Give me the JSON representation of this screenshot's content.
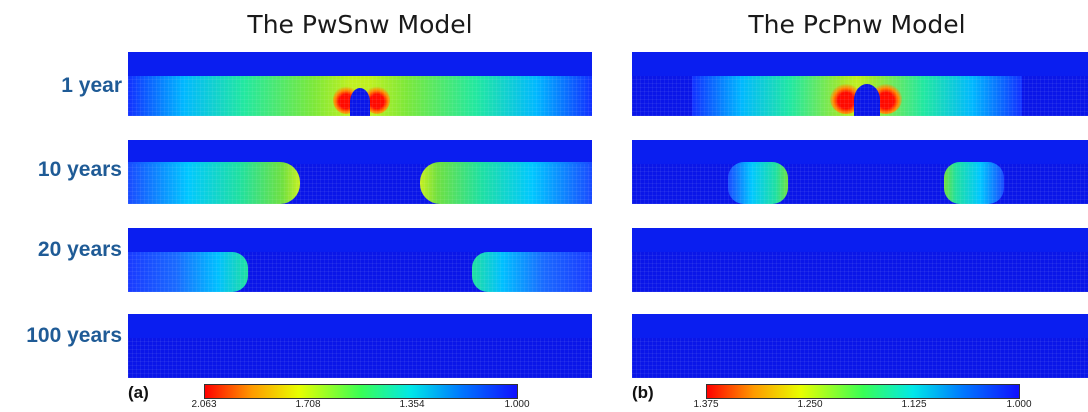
{
  "left_title": "The PwSnw Model",
  "right_title": "The PcPnw Model",
  "rows": [
    "1 year",
    "10 years",
    "20 years",
    "100 years"
  ],
  "left_label": "(a)",
  "right_label": "(b)",
  "left_colorbar": {
    "ticks": [
      "2.063",
      "1.708",
      "1.354",
      "1.000"
    ]
  },
  "right_colorbar": {
    "ticks": [
      "1.375",
      "1.250",
      "1.125",
      "1.000"
    ]
  }
}
